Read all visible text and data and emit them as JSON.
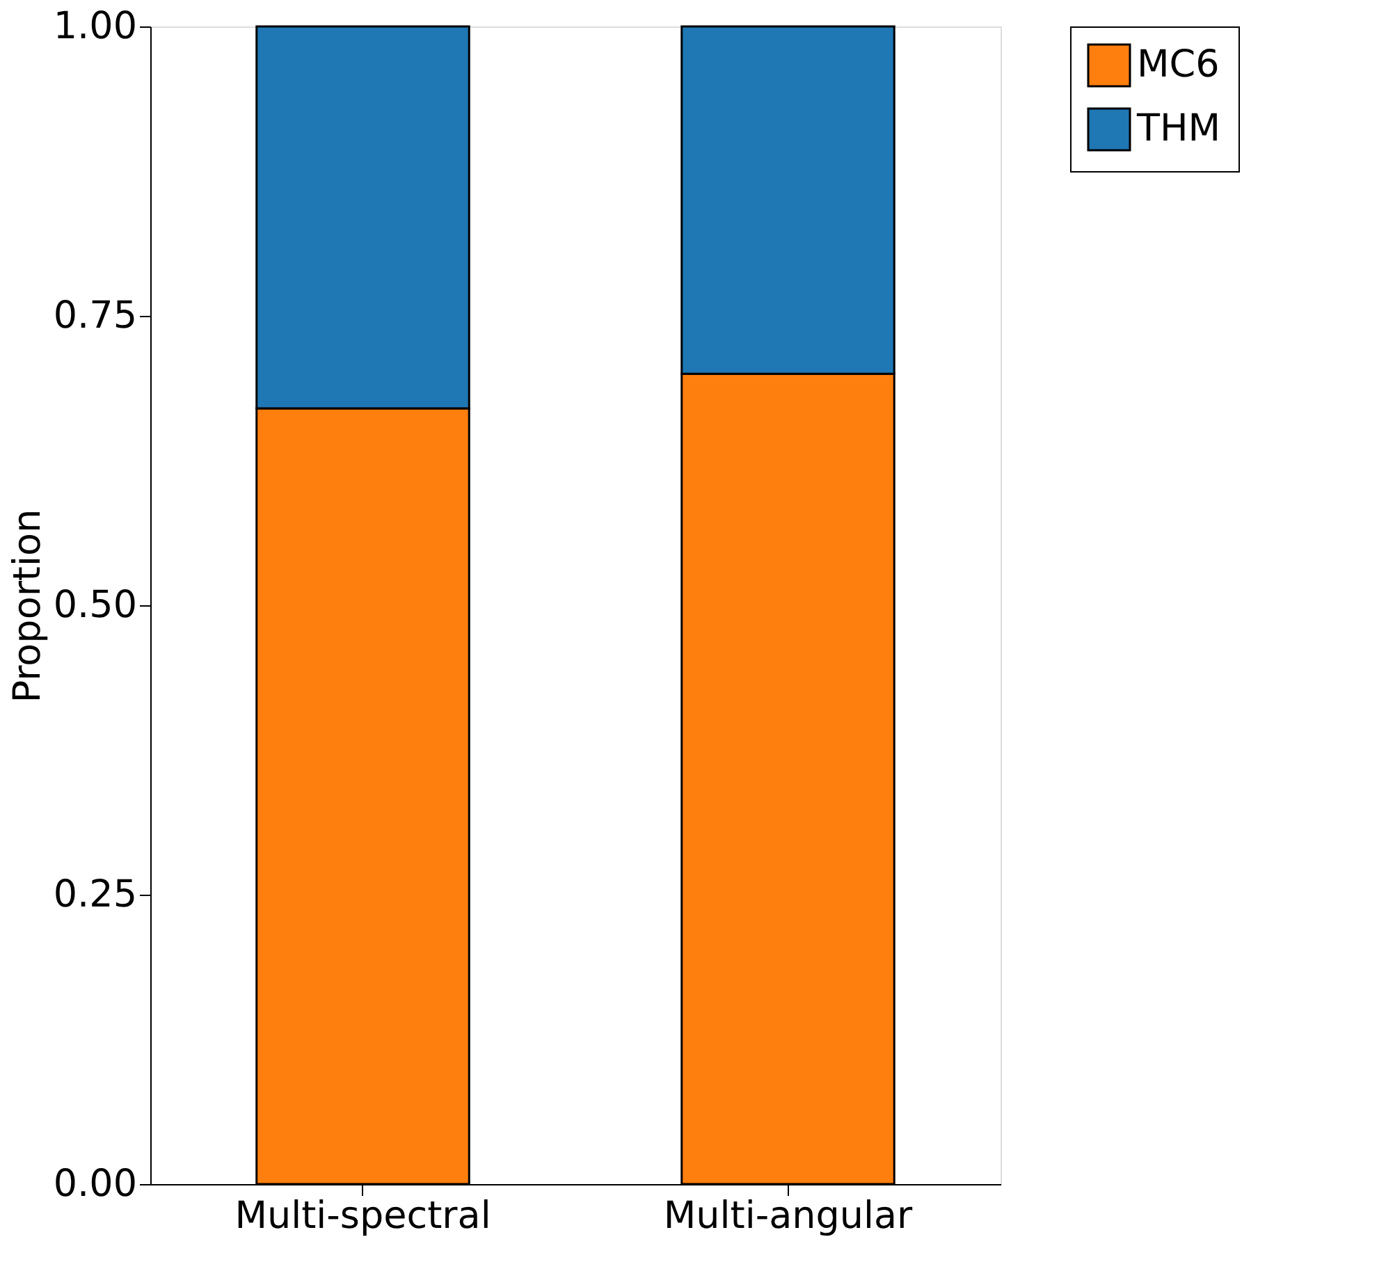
{
  "chart_data": {
    "type": "bar",
    "ylabel": "Proportion",
    "categories": [
      "Multi-spectral",
      "Multi-angular"
    ],
    "series": [
      {
        "name": "MC6",
        "color": "#ff7f0e",
        "values": [
          0.67,
          0.7
        ]
      },
      {
        "name": "THM",
        "color": "#1f77b4",
        "values": [
          0.33,
          0.3
        ]
      }
    ],
    "stacked": true,
    "ylim": [
      0,
      1
    ],
    "yticks": [
      {
        "value": 0,
        "label": "0.00"
      },
      {
        "value": 0.25,
        "label": "0.25"
      },
      {
        "value": 0.5,
        "label": "0.50"
      },
      {
        "value": 0.75,
        "label": "0.75"
      },
      {
        "value": 1,
        "label": "1.00"
      }
    ],
    "legend": "top right"
  }
}
